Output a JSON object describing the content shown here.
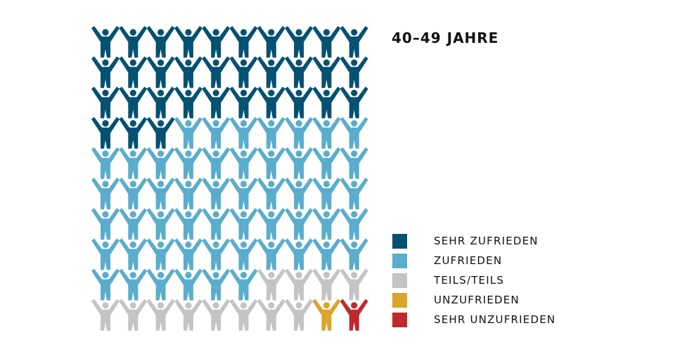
{
  "chart_data": {
    "type": "pictogram",
    "title": "40–49 JAHRE",
    "total": 100,
    "categories": [
      "SEHR ZUFRIEDEN",
      "ZUFRIEDEN",
      "TEILS/TEILS",
      "UNZUFRIEDEN",
      "SEHR UNZUFRIEDEN"
    ],
    "values": [
      33,
      53,
      12,
      1,
      1
    ],
    "colors": [
      "#045172",
      "#5aadcc",
      "#c4c4c4",
      "#dba42b",
      "#c0292c"
    ],
    "legend_position": "bottom-right"
  }
}
